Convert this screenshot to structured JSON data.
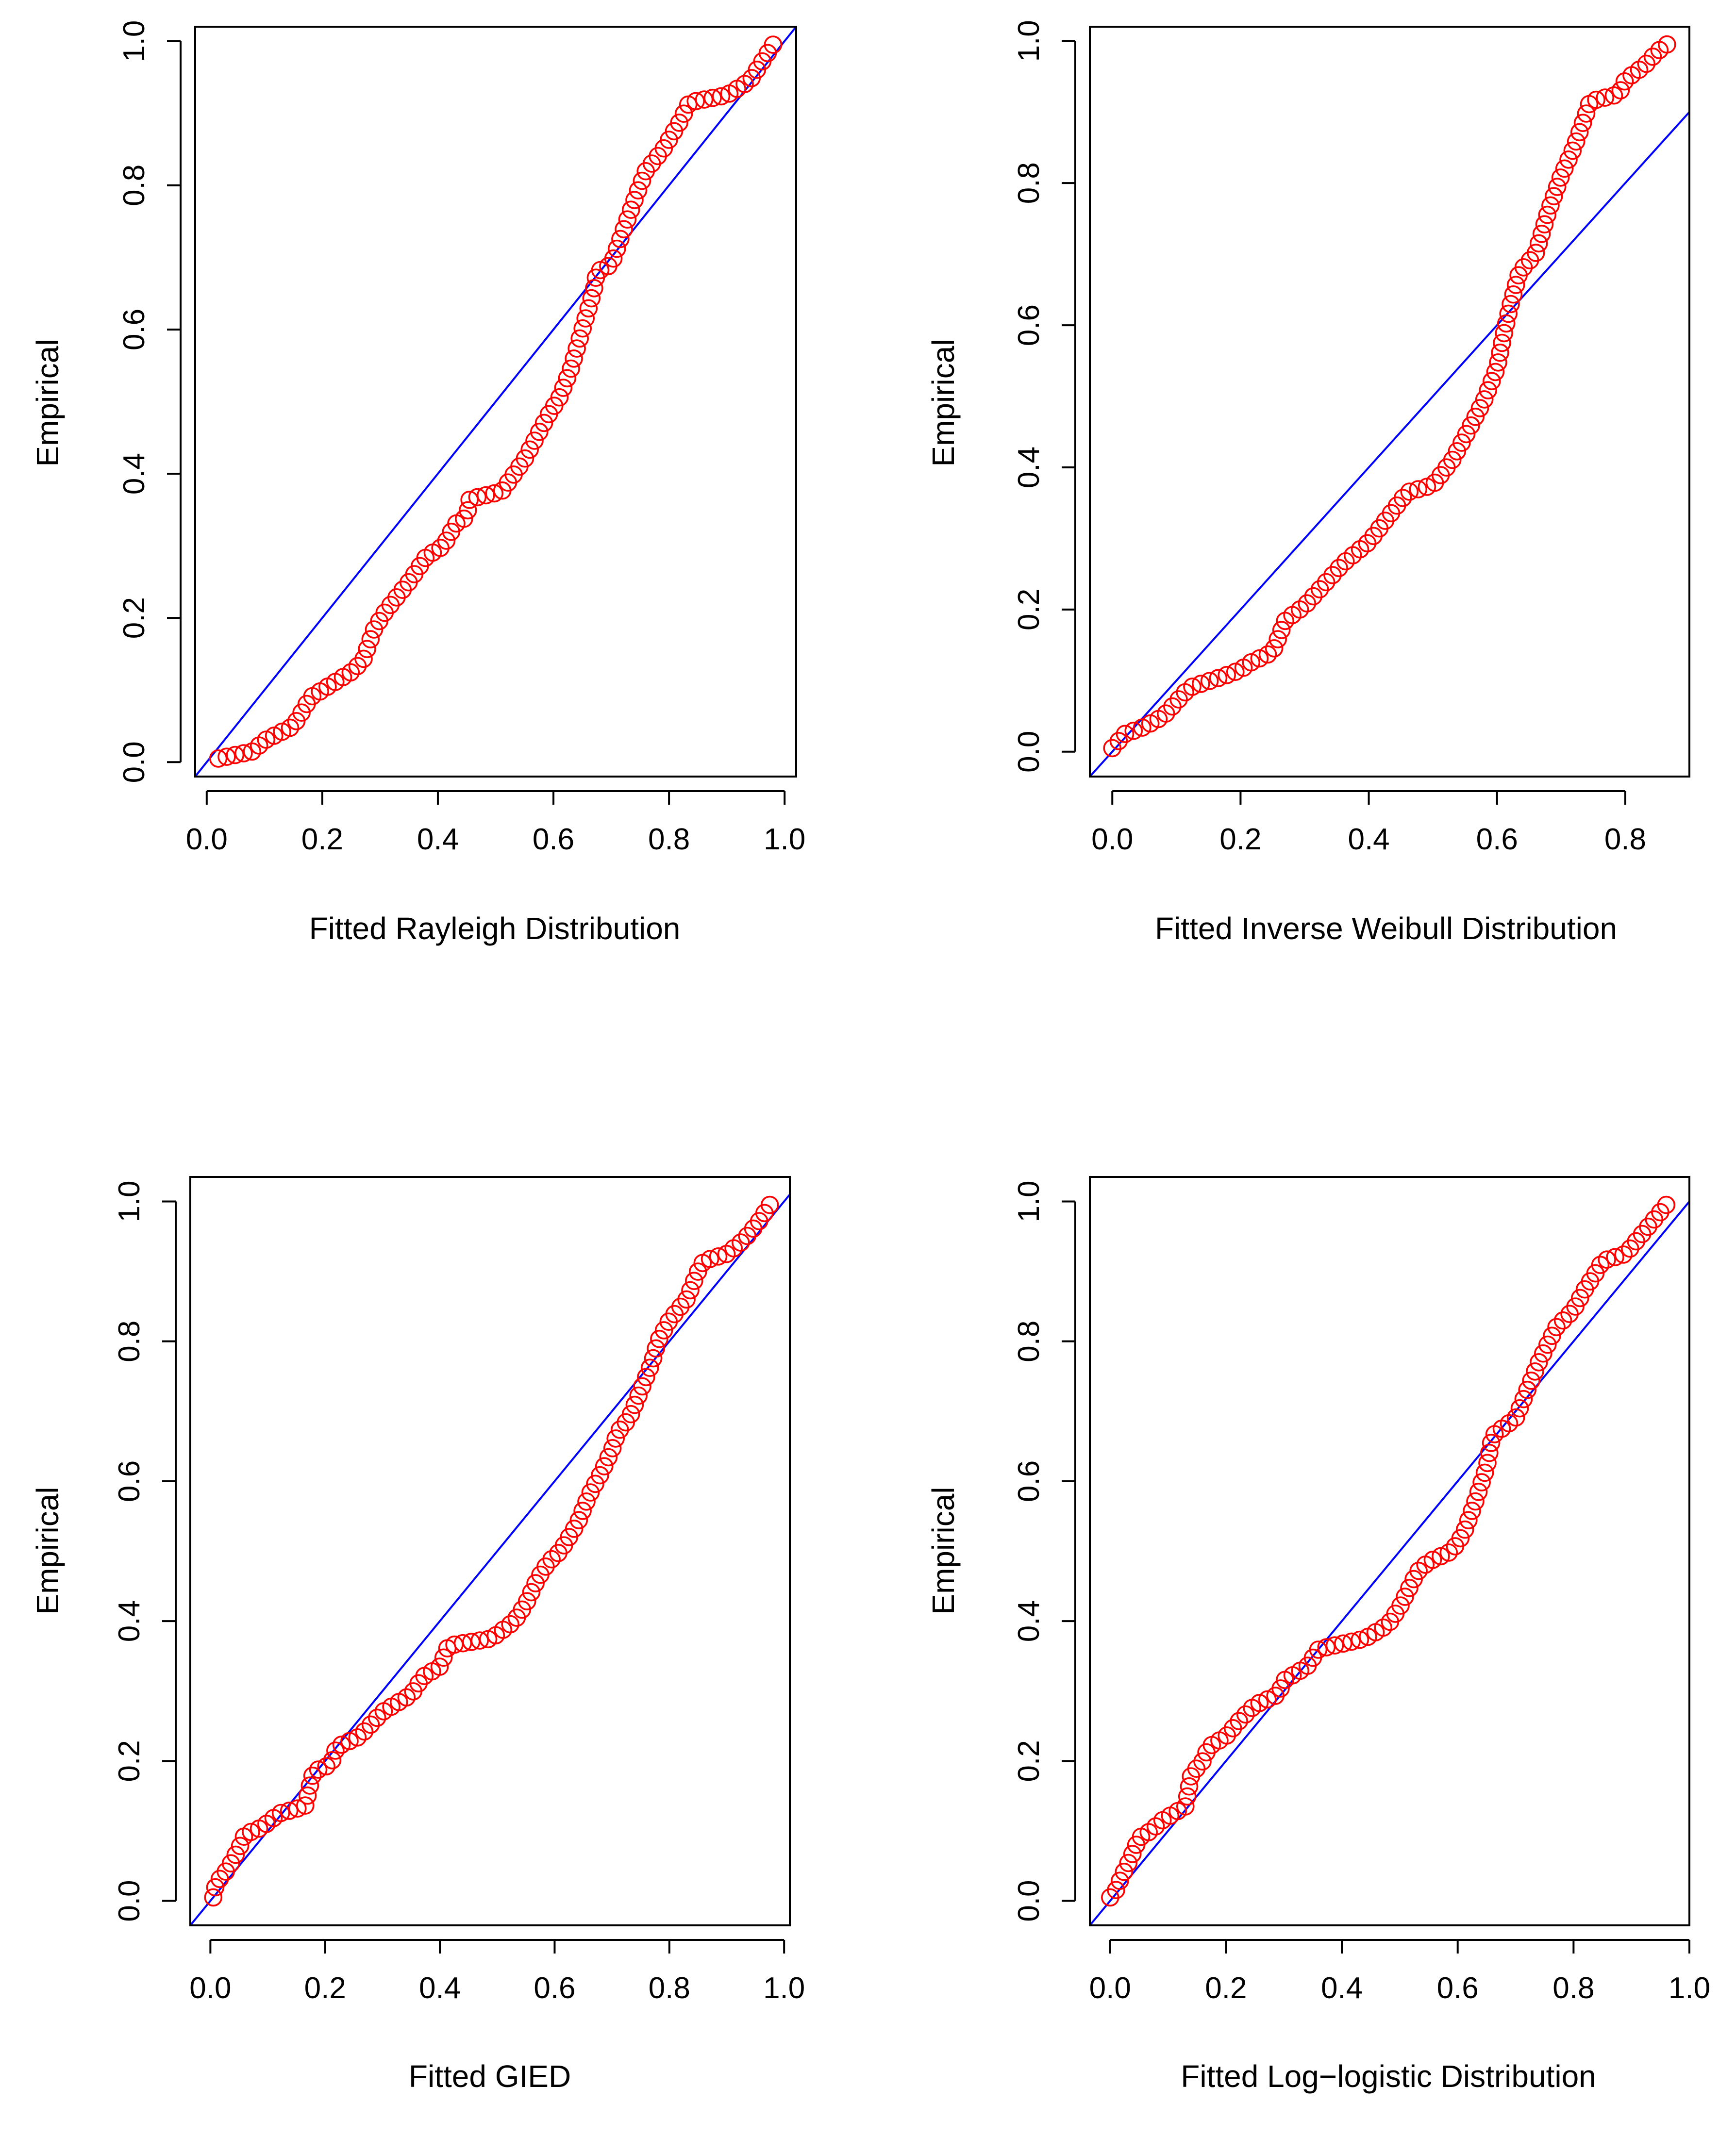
{
  "colors": {
    "points": "#ff0000",
    "line": "#0000ff",
    "axes": "#000000",
    "background": "#ffffff"
  },
  "chart_data": [
    {
      "type": "scatter",
      "title": "",
      "xlabel": "Fitted Rayleigh Distribution",
      "ylabel": "Empirical",
      "xlim": [
        -0.02,
        1.02
      ],
      "ylim": [
        -0.02,
        1.02
      ],
      "xticks": [
        0.0,
        0.2,
        0.4,
        0.6,
        0.8,
        1.0
      ],
      "xtick_labels": [
        "0.0",
        "0.2",
        "0.4",
        "0.6",
        "0.8",
        "1.0"
      ],
      "yticks": [
        0.0,
        0.2,
        0.4,
        0.6,
        0.8,
        1.0
      ],
      "ytick_labels": [
        "0.0",
        "0.2",
        "0.4",
        "0.6",
        "0.8",
        "1.0"
      ],
      "reference_line": {
        "intercept": 0,
        "slope": 1
      },
      "legend": "none",
      "curve": [
        [
          0.02,
          0.005
        ],
        [
          0.08,
          0.015
        ],
        [
          0.1,
          0.03
        ],
        [
          0.15,
          0.05
        ],
        [
          0.18,
          0.09
        ],
        [
          0.21,
          0.105
        ],
        [
          0.25,
          0.125
        ],
        [
          0.27,
          0.14
        ],
        [
          0.29,
          0.185
        ],
        [
          0.31,
          0.21
        ],
        [
          0.35,
          0.25
        ],
        [
          0.38,
          0.285
        ],
        [
          0.41,
          0.3
        ],
        [
          0.43,
          0.33
        ],
        [
          0.45,
          0.34
        ],
        [
          0.455,
          0.365
        ],
        [
          0.51,
          0.375
        ],
        [
          0.55,
          0.42
        ],
        [
          0.59,
          0.48
        ],
        [
          0.61,
          0.505
        ],
        [
          0.63,
          0.545
        ],
        [
          0.65,
          0.6
        ],
        [
          0.67,
          0.655
        ],
        [
          0.675,
          0.68
        ],
        [
          0.7,
          0.69
        ],
        [
          0.72,
          0.735
        ],
        [
          0.745,
          0.79
        ],
        [
          0.76,
          0.82
        ],
        [
          0.79,
          0.85
        ],
        [
          0.82,
          0.89
        ],
        [
          0.835,
          0.915
        ],
        [
          0.9,
          0.925
        ],
        [
          0.94,
          0.945
        ],
        [
          0.96,
          0.97
        ],
        [
          0.98,
          0.995
        ]
      ]
    },
    {
      "type": "scatter",
      "title": "",
      "xlabel": "Fitted Inverse Weibull Distribution",
      "ylabel": "Empirical",
      "xlim": [
        -0.035,
        0.9
      ],
      "ylim": [
        -0.035,
        1.02
      ],
      "xticks": [
        0.0,
        0.2,
        0.4,
        0.6,
        0.8
      ],
      "xtick_labels": [
        "0.0",
        "0.2",
        "0.4",
        "0.6",
        "0.8"
      ],
      "yticks": [
        0.0,
        0.2,
        0.4,
        0.6,
        0.8,
        1.0
      ],
      "ytick_labels": [
        "0.0",
        "0.2",
        "0.4",
        "0.6",
        "0.8",
        "1.0"
      ],
      "reference_line": {
        "intercept": 0,
        "slope": 1
      },
      "legend": "none",
      "curve": [
        [
          0.0,
          0.005
        ],
        [
          0.02,
          0.025
        ],
        [
          0.05,
          0.035
        ],
        [
          0.08,
          0.05
        ],
        [
          0.1,
          0.07
        ],
        [
          0.12,
          0.09
        ],
        [
          0.17,
          0.105
        ],
        [
          0.2,
          0.115
        ],
        [
          0.215,
          0.125
        ],
        [
          0.25,
          0.14
        ],
        [
          0.27,
          0.185
        ],
        [
          0.3,
          0.205
        ],
        [
          0.33,
          0.235
        ],
        [
          0.36,
          0.265
        ],
        [
          0.4,
          0.295
        ],
        [
          0.43,
          0.33
        ],
        [
          0.46,
          0.365
        ],
        [
          0.5,
          0.375
        ],
        [
          0.53,
          0.41
        ],
        [
          0.56,
          0.46
        ],
        [
          0.58,
          0.495
        ],
        [
          0.6,
          0.54
        ],
        [
          0.61,
          0.585
        ],
        [
          0.62,
          0.625
        ],
        [
          0.635,
          0.675
        ],
        [
          0.66,
          0.7
        ],
        [
          0.68,
          0.76
        ],
        [
          0.7,
          0.81
        ],
        [
          0.72,
          0.85
        ],
        [
          0.74,
          0.9
        ],
        [
          0.745,
          0.915
        ],
        [
          0.79,
          0.925
        ],
        [
          0.8,
          0.945
        ],
        [
          0.83,
          0.965
        ],
        [
          0.85,
          0.985
        ],
        [
          0.865,
          0.995
        ]
      ]
    },
    {
      "type": "scatter",
      "title": "",
      "xlabel": "Fitted GIED",
      "ylabel": "Empirical",
      "xlim": [
        -0.035,
        1.01
      ],
      "ylim": [
        -0.035,
        1.035
      ],
      "xticks": [
        0.0,
        0.2,
        0.4,
        0.6,
        0.8,
        1.0
      ],
      "xtick_labels": [
        "0.0",
        "0.2",
        "0.4",
        "0.6",
        "0.8",
        "1.0"
      ],
      "yticks": [
        0.0,
        0.2,
        0.4,
        0.6,
        0.8,
        1.0
      ],
      "ytick_labels": [
        "0.0",
        "0.2",
        "0.4",
        "0.6",
        "0.8",
        "1.0"
      ],
      "reference_line": {
        "intercept": 0,
        "slope": 1
      },
      "legend": "none",
      "curve": [
        [
          0.005,
          0.005
        ],
        [
          0.01,
          0.025
        ],
        [
          0.03,
          0.045
        ],
        [
          0.05,
          0.075
        ],
        [
          0.06,
          0.095
        ],
        [
          0.09,
          0.105
        ],
        [
          0.12,
          0.125
        ],
        [
          0.165,
          0.135
        ],
        [
          0.175,
          0.17
        ],
        [
          0.18,
          0.185
        ],
        [
          0.21,
          0.195
        ],
        [
          0.22,
          0.22
        ],
        [
          0.26,
          0.235
        ],
        [
          0.3,
          0.27
        ],
        [
          0.33,
          0.285
        ],
        [
          0.35,
          0.295
        ],
        [
          0.37,
          0.32
        ],
        [
          0.4,
          0.335
        ],
        [
          0.415,
          0.365
        ],
        [
          0.49,
          0.375
        ],
        [
          0.53,
          0.4
        ],
        [
          0.55,
          0.425
        ],
        [
          0.57,
          0.46
        ],
        [
          0.59,
          0.485
        ],
        [
          0.61,
          0.5
        ],
        [
          0.64,
          0.54
        ],
        [
          0.66,
          0.58
        ],
        [
          0.68,
          0.61
        ],
        [
          0.7,
          0.645
        ],
        [
          0.71,
          0.67
        ],
        [
          0.73,
          0.69
        ],
        [
          0.75,
          0.73
        ],
        [
          0.77,
          0.77
        ],
        [
          0.78,
          0.8
        ],
        [
          0.8,
          0.83
        ],
        [
          0.83,
          0.86
        ],
        [
          0.85,
          0.9
        ],
        [
          0.86,
          0.915
        ],
        [
          0.9,
          0.925
        ],
        [
          0.93,
          0.945
        ],
        [
          0.955,
          0.97
        ],
        [
          0.975,
          0.995
        ]
      ]
    },
    {
      "type": "scatter",
      "title": "",
      "xlabel": "Fitted Log−logistic Distribution",
      "ylabel": "Empirical",
      "xlim": [
        -0.035,
        1.0
      ],
      "ylim": [
        -0.035,
        1.035
      ],
      "xticks": [
        0.0,
        0.2,
        0.4,
        0.6,
        0.8,
        1.0
      ],
      "xtick_labels": [
        "0.0",
        "0.2",
        "0.4",
        "0.6",
        "0.8",
        "1.0"
      ],
      "yticks": [
        0.0,
        0.2,
        0.4,
        0.6,
        0.8,
        1.0
      ],
      "ytick_labels": [
        "0.0",
        "0.2",
        "0.4",
        "0.6",
        "0.8",
        "1.0"
      ],
      "reference_line": {
        "intercept": 0,
        "slope": 1
      },
      "legend": "none",
      "curve": [
        [
          0.0,
          0.005
        ],
        [
          0.01,
          0.015
        ],
        [
          0.02,
          0.035
        ],
        [
          0.035,
          0.06
        ],
        [
          0.05,
          0.09
        ],
        [
          0.07,
          0.1
        ],
        [
          0.09,
          0.115
        ],
        [
          0.13,
          0.135
        ],
        [
          0.14,
          0.18
        ],
        [
          0.16,
          0.2
        ],
        [
          0.17,
          0.22
        ],
        [
          0.2,
          0.235
        ],
        [
          0.22,
          0.255
        ],
        [
          0.25,
          0.28
        ],
        [
          0.29,
          0.295
        ],
        [
          0.3,
          0.315
        ],
        [
          0.34,
          0.335
        ],
        [
          0.36,
          0.36
        ],
        [
          0.44,
          0.375
        ],
        [
          0.48,
          0.395
        ],
        [
          0.5,
          0.42
        ],
        [
          0.53,
          0.47
        ],
        [
          0.55,
          0.485
        ],
        [
          0.59,
          0.5
        ],
        [
          0.61,
          0.525
        ],
        [
          0.63,
          0.57
        ],
        [
          0.65,
          0.62
        ],
        [
          0.66,
          0.665
        ],
        [
          0.7,
          0.69
        ],
        [
          0.72,
          0.73
        ],
        [
          0.74,
          0.77
        ],
        [
          0.77,
          0.82
        ],
        [
          0.8,
          0.845
        ],
        [
          0.82,
          0.875
        ],
        [
          0.84,
          0.9
        ],
        [
          0.85,
          0.915
        ],
        [
          0.89,
          0.925
        ],
        [
          0.91,
          0.945
        ],
        [
          0.93,
          0.965
        ],
        [
          0.95,
          0.985
        ],
        [
          0.96,
          0.995
        ]
      ]
    }
  ]
}
